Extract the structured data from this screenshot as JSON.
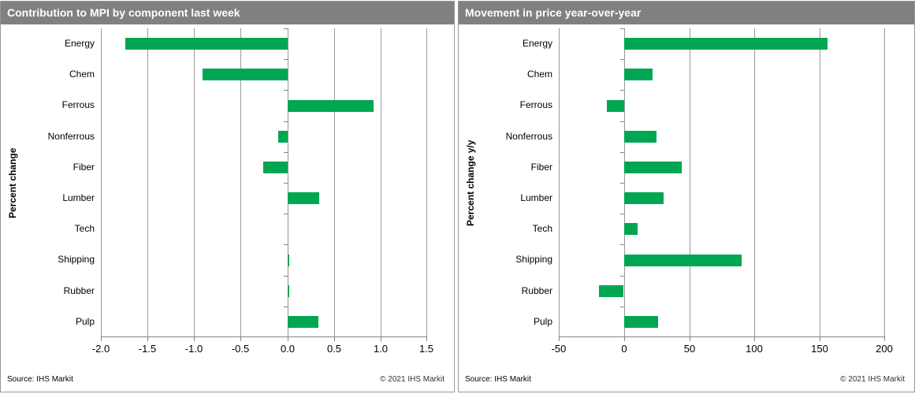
{
  "colors": {
    "bar_green": "#00A651",
    "title_bar_gray": "#808080",
    "gridline_gray": "#999999",
    "axis_gray": "#858585",
    "title_text": "#ffffff",
    "copyright_text": "#333333"
  },
  "chart_data": [
    {
      "type": "bar",
      "orientation": "horizontal",
      "title": "Contribution to MPI by component last week",
      "xlabel": "",
      "ylabel": "Percent change",
      "categories": [
        "Energy",
        "Chem",
        "Ferrous",
        "Nonferrous",
        "Fiber",
        "Lumber",
        "Tech",
        "Shipping",
        "Rubber",
        "Pulp"
      ],
      "values": [
        -1.74,
        -0.91,
        0.92,
        -0.1,
        -0.26,
        0.34,
        0.0,
        0.02,
        0.02,
        0.33
      ],
      "xlim": [
        -2.0,
        1.5
      ],
      "tick_values": [
        -2.0,
        -1.5,
        -1.0,
        -0.5,
        0.0,
        0.5,
        1.0,
        1.5
      ],
      "tick_labels": [
        "-2.0",
        "-1.5",
        "-1.0",
        "-0.5",
        "0.0",
        "0.5",
        "1.0",
        "1.5"
      ],
      "grid": true,
      "legend": "none",
      "source": "Source:  IHS Markit",
      "copyright": "© 2021  IHS Markit"
    },
    {
      "type": "bar",
      "orientation": "horizontal",
      "title": "Movement in price year-over-year",
      "xlabel": "",
      "ylabel": "Percent change y/y",
      "categories": [
        "Energy",
        "Chem",
        "Ferrous",
        "Nonferrous",
        "Fiber",
        "Lumber",
        "Tech",
        "Shipping",
        "Rubber",
        "Pulp"
      ],
      "values": [
        156,
        22,
        -13,
        25,
        44,
        30,
        10,
        90,
        -19,
        26
      ],
      "xlim": [
        -50,
        200
      ],
      "tick_values": [
        -50,
        0,
        50,
        100,
        150,
        200
      ],
      "tick_labels": [
        "-50",
        "0",
        "50",
        "100",
        "150",
        "200"
      ],
      "grid": true,
      "legend": "none",
      "source": "Source:  IHS Markit",
      "copyright": "© 2021  IHS Markit"
    }
  ]
}
